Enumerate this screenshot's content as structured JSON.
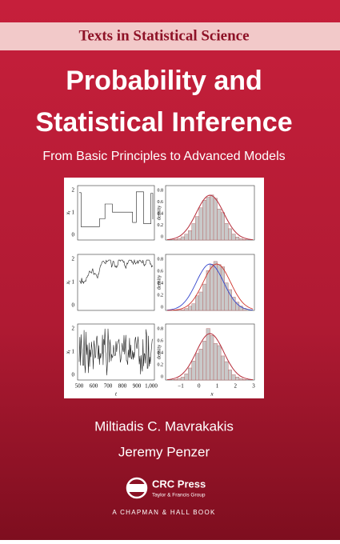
{
  "series_title": "Texts in Statistical Science",
  "title": [
    "Probability and",
    "Statistical Inference"
  ],
  "subtitle": "From Basic Principles to Advanced Models",
  "figure": {
    "time_series": {
      "y_label": "x",
      "y_label_sub": "t",
      "x_label": "t",
      "yticks": [
        "2",
        "1",
        "0"
      ],
      "xticks": [
        "500",
        "600",
        "700",
        "800",
        "900",
        "1,000"
      ]
    },
    "density": {
      "y_label": "density",
      "x_label": "x",
      "yticks": [
        "0.8",
        "0.6",
        "0.4",
        "0.2",
        "0"
      ],
      "xticks": [
        "−1",
        "0",
        "1",
        "2",
        "3"
      ]
    }
  },
  "authors": [
    "Miltiadis C. Mavrakakis",
    "Jeremy Penzer"
  ],
  "publisher": {
    "name": "CRC Press",
    "group": "Taylor & Francis Group",
    "imprint": "A CHAPMAN & HALL BOOK"
  }
}
